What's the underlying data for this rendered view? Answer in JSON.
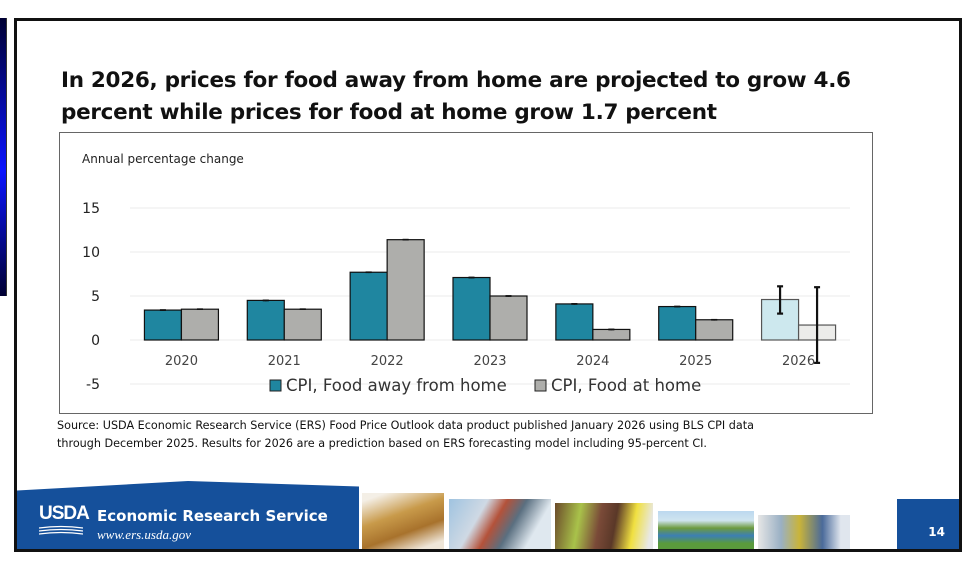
{
  "slide": {
    "title": "In 2026, prices for food away from home are projected to grow 4.6 percent while prices for food at home grow 1.7 percent",
    "source_line1": "Source: USDA Economic Research Service (ERS) Food Price Outlook data product published January 2026 using BLS CPI data",
    "source_line2": "through December 2025. Results for 2026 are a prediction based on ERS forecasting model including 95-percent CI.",
    "page_number": "14"
  },
  "footer": {
    "logo_text": "USDA",
    "org_name": "Economic Research Service",
    "url": "www.ers.usda.gov",
    "photos": [
      "wheat-photo",
      "cargo-ship-photo",
      "grocery-shopper-photo",
      "wetland-photo",
      "small-town-photo"
    ]
  },
  "chart_data": {
    "type": "bar",
    "title": "",
    "ylabel": "Annual percentage change",
    "xlabel": "",
    "categories": [
      "2020",
      "2021",
      "2022",
      "2023",
      "2024",
      "2025",
      "2026"
    ],
    "ylim": [
      -5,
      15
    ],
    "yticks": [
      15,
      10,
      5,
      0,
      -5
    ],
    "grid": true,
    "legend_position": "bottom",
    "series": [
      {
        "name": "CPI, Food away from home",
        "color": "#1f86a0",
        "forecast_color": "#cde8ee",
        "values": [
          3.4,
          4.5,
          7.7,
          7.1,
          4.1,
          3.8,
          4.6
        ],
        "ci_low": [
          3.4,
          4.5,
          7.7,
          7.1,
          4.1,
          3.8,
          3.0
        ],
        "ci_high": [
          3.4,
          4.5,
          7.7,
          7.1,
          4.1,
          3.8,
          6.1
        ]
      },
      {
        "name": "CPI, Food at home",
        "color": "#aeaeab",
        "forecast_color": "#ececea",
        "values": [
          3.5,
          3.5,
          11.4,
          5.0,
          1.2,
          2.3,
          1.7
        ],
        "ci_low": [
          3.5,
          3.5,
          11.4,
          5.0,
          1.2,
          2.3,
          -2.6
        ],
        "ci_high": [
          3.5,
          3.5,
          11.4,
          5.0,
          1.2,
          2.3,
          6.0
        ]
      }
    ],
    "forecast_categories": [
      "2026"
    ]
  }
}
